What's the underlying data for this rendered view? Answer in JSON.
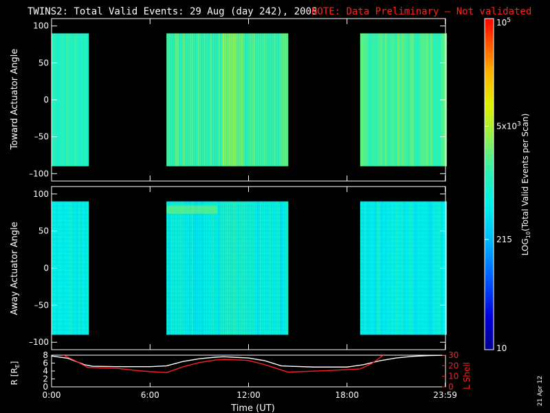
{
  "title": "TWINS2: Total Valid Events: 29 Aug (day 242), 2008",
  "note": "NOTE: Data Preliminary – Not validated",
  "side_date": "21 Apr 12",
  "colors": {
    "background": "#000000",
    "axes": "#ffffff",
    "note": "#ff2020",
    "lshell": "#ff2020",
    "r_line": "#ffffff"
  },
  "chart_data": [
    {
      "type": "heatmap",
      "panel": "top",
      "ylabel": "Toward Actuator Angle",
      "ylim": [
        -110,
        110
      ],
      "yticks": [
        100,
        50,
        0,
        -50,
        -100
      ],
      "ytick_labels": [
        "100",
        "50",
        "0",
        "–50",
        "–100"
      ],
      "xlim_hours": [
        0,
        24
      ],
      "blocks": [
        {
          "start_hour": -0.1,
          "end_hour": 2.15,
          "angle_min": -90,
          "angle_max": 90,
          "level": 0.52
        },
        {
          "start_hour": 7.0,
          "end_hour": 14.4,
          "angle_min": -90,
          "angle_max": 90,
          "level": 0.55
        },
        {
          "start_hour": 18.8,
          "end_hour": 23.99,
          "angle_min": -90,
          "angle_max": 90,
          "level": 0.56
        }
      ]
    },
    {
      "type": "heatmap",
      "panel": "middle",
      "ylabel": "Away Actuator Angle",
      "ylim": [
        -110,
        110
      ],
      "yticks": [
        100,
        50,
        0,
        -50,
        -100
      ],
      "ytick_labels": [
        "100",
        "50",
        "0",
        "–50",
        "–100"
      ],
      "xlim_hours": [
        0,
        24
      ],
      "blocks": [
        {
          "start_hour": -0.1,
          "end_hour": 2.15,
          "angle_min": -90,
          "angle_max": 90,
          "level": 0.46
        },
        {
          "start_hour": 7.0,
          "end_hour": 14.4,
          "angle_min": -90,
          "angle_max": 90,
          "level": 0.45
        },
        {
          "start_hour": 18.8,
          "end_hour": 23.99,
          "angle_min": -90,
          "angle_max": 90,
          "level": 0.45
        }
      ]
    },
    {
      "type": "line",
      "panel": "bottom",
      "ylabel": "R [R_E]",
      "ylabel_main": "R [R",
      "ylabel_sub": "E",
      "ylabel_close": "]",
      "ylim": [
        0,
        8
      ],
      "yticks": [
        0,
        2,
        4,
        6,
        8
      ],
      "y2label": "L Shell",
      "y2lim": [
        0,
        30
      ],
      "y2ticks": [
        0,
        10,
        20,
        30
      ],
      "xlabel": "Time (UT)",
      "xticks_hours": [
        0,
        6,
        12,
        18,
        23.983
      ],
      "xtick_labels": [
        "0:00",
        "6:00",
        "12:00",
        "18:00",
        "23:59"
      ],
      "series": [
        {
          "name": "R",
          "axis": "left",
          "x": [
            0,
            1,
            2,
            2.5,
            4,
            6,
            7,
            8,
            9,
            10,
            10.5,
            11,
            12,
            13,
            14,
            14.5,
            16,
            18,
            19,
            20,
            21,
            22,
            23,
            24
          ],
          "y": [
            7.8,
            7.2,
            5.6,
            5.2,
            5.1,
            5.1,
            5.3,
            6.4,
            7.1,
            7.5,
            7.6,
            7.5,
            7.3,
            6.6,
            5.3,
            5.2,
            5.0,
            5.0,
            5.6,
            6.6,
            7.3,
            7.7,
            7.9,
            8.0
          ]
        },
        {
          "name": "L Shell",
          "axis": "right",
          "x": [
            0.6,
            1.4,
            2.2,
            2.6,
            4,
            5.5,
            7.0,
            8,
            9,
            10,
            10.5,
            11,
            12,
            13,
            14.4,
            15,
            17,
            18.8,
            19.5,
            20.3
          ],
          "y": [
            31,
            25,
            18.5,
            18.3,
            17.5,
            15,
            13.5,
            19,
            23,
            25.5,
            26,
            25.8,
            25,
            21,
            14,
            14.3,
            15.5,
            17,
            22,
            31
          ]
        }
      ]
    }
  ],
  "colorbar": {
    "label": "LOG10(Total Valid Events per Scan)",
    "label_prefix": "LOG",
    "label_sub": "10",
    "label_suffix": "(Total Valid Events per Scan)",
    "scale": "log",
    "range": [
      10,
      100000
    ],
    "ticks": [
      {
        "value": 100000,
        "base": "10",
        "exp": "5"
      },
      {
        "value": 5000,
        "base": "5x10",
        "exp": "3"
      },
      {
        "value": 215,
        "base": "215",
        "exp": ""
      },
      {
        "value": 10,
        "base": "10",
        "exp": ""
      }
    ]
  }
}
